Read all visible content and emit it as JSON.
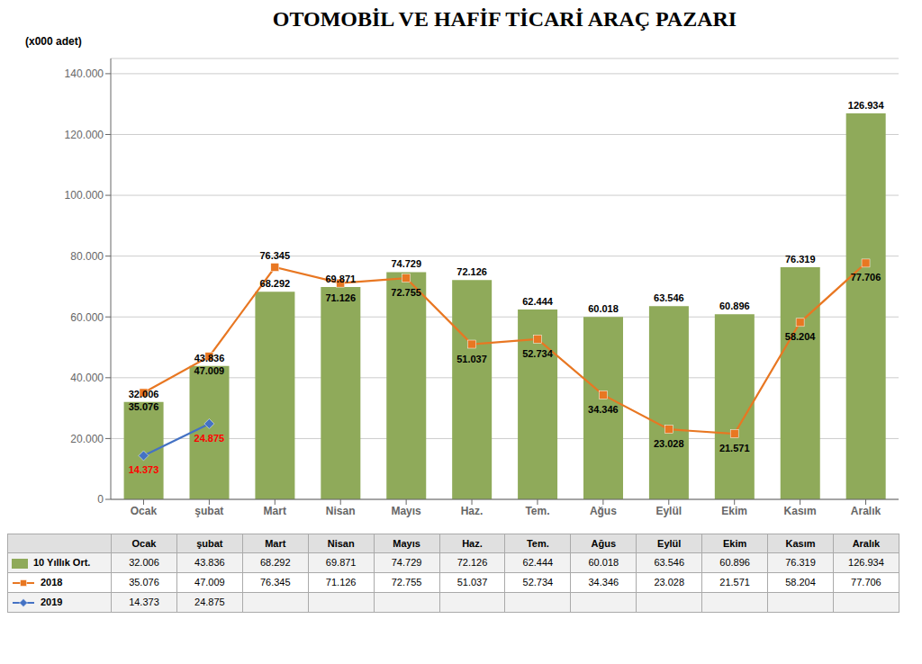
{
  "chart_data": {
    "type": "bar",
    "title": "OTOMOBİL VE HAFİF TİCARİ ARAÇ PAZARI",
    "ylabel": "(x000 adet)",
    "categories": [
      "Ocak",
      "şubat",
      "Mart",
      "Nisan",
      "Mayıs",
      "Haz.",
      "Tem.",
      "Ağus",
      "Eylül",
      "Ekim",
      "Kasım",
      "Aralık"
    ],
    "series": [
      {
        "name": "10 Yıllık Ort.",
        "type": "bar",
        "color": "#8faa5a",
        "values": [
          32006,
          43836,
          68292,
          69871,
          74729,
          72126,
          62444,
          60018,
          63546,
          60896,
          76319,
          126934
        ],
        "value_labels": [
          "32.006",
          "43.836",
          "68.292",
          "69.871",
          "74.729",
          "72.126",
          "62.444",
          "60.018",
          "63.546",
          "60.896",
          "76.319",
          "126.934"
        ]
      },
      {
        "name": "2018",
        "type": "line",
        "color": "#e87722",
        "marker": "square",
        "line_style": "solid",
        "values": [
          35076,
          47009,
          76345,
          71126,
          72755,
          51037,
          52734,
          34346,
          23028,
          21571,
          58204,
          77706
        ],
        "value_labels": [
          "35.076",
          "47.009",
          "76.345",
          "71.126",
          "72.755",
          "51.037",
          "52.734",
          "34.346",
          "23.028",
          "21.571",
          "58.204",
          "77.706"
        ]
      },
      {
        "name": "2019",
        "type": "line",
        "color": "#4472c4",
        "marker": "diamond",
        "line_style": "solid",
        "values": [
          14373,
          24875,
          null,
          null,
          null,
          null,
          null,
          null,
          null,
          null,
          null,
          null
        ],
        "value_labels": [
          "14.373",
          "24.875",
          null,
          null,
          null,
          null,
          null,
          null,
          null,
          null,
          null,
          null
        ]
      }
    ],
    "ylim": [
      0,
      145000
    ],
    "yticks": [
      0,
      {
        "value": 20000,
        "label": "20.000"
      },
      {
        "value": 40000,
        "label": "40.000"
      },
      {
        "value": 60000,
        "label": "60.000"
      },
      {
        "value": 80000,
        "label": "80.000"
      },
      {
        "value": 100000,
        "label": "100.000"
      },
      {
        "value": 120000,
        "label": "120.000"
      },
      {
        "value": 140000,
        "label": "140.000"
      }
    ],
    "grid": true,
    "data_labels": true
  }
}
